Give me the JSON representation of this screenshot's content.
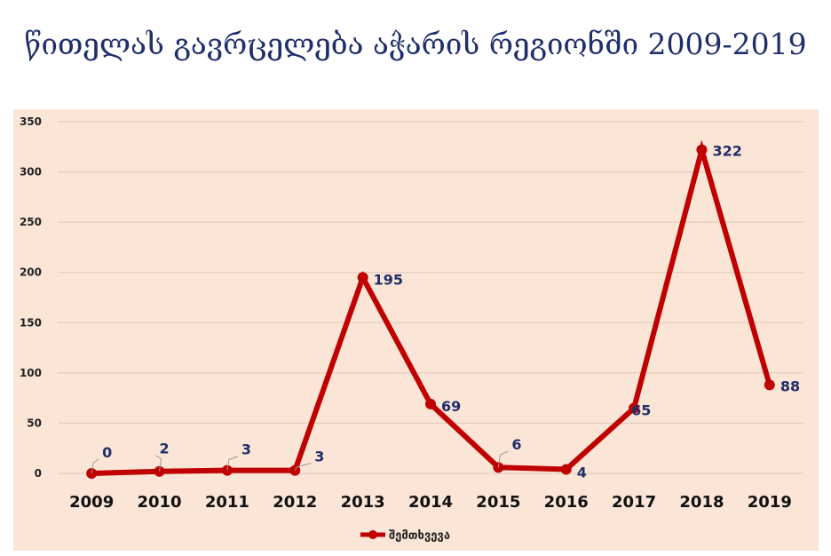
{
  "title": "წითელას გავრცელება აჭარის რეგიონში 2009-2019",
  "chart_data": {
    "type": "line",
    "title": "წითელას გავრცელება აჭარის რეგიონში 2009-2019",
    "categories": [
      "2009",
      "2010",
      "2011",
      "2012",
      "2013",
      "2014",
      "2015",
      "2016",
      "2017",
      "2018",
      "2019"
    ],
    "series": [
      {
        "name": "შემთხვევა",
        "values": [
          0,
          2,
          3,
          3,
          195,
          69,
          6,
          4,
          65,
          322,
          88
        ],
        "color": "#c00000"
      }
    ],
    "data_labels": [
      "0",
      "2",
      "3",
      "3",
      "195",
      "69",
      "6",
      "4",
      "65",
      "322",
      "88"
    ],
    "y_ticks": [
      "0",
      "50",
      "100",
      "150",
      "200",
      "250",
      "300",
      "350"
    ],
    "ylim": [
      0,
      350
    ],
    "grid": true,
    "legend": "bottom",
    "xlabel": "",
    "ylabel": ""
  }
}
